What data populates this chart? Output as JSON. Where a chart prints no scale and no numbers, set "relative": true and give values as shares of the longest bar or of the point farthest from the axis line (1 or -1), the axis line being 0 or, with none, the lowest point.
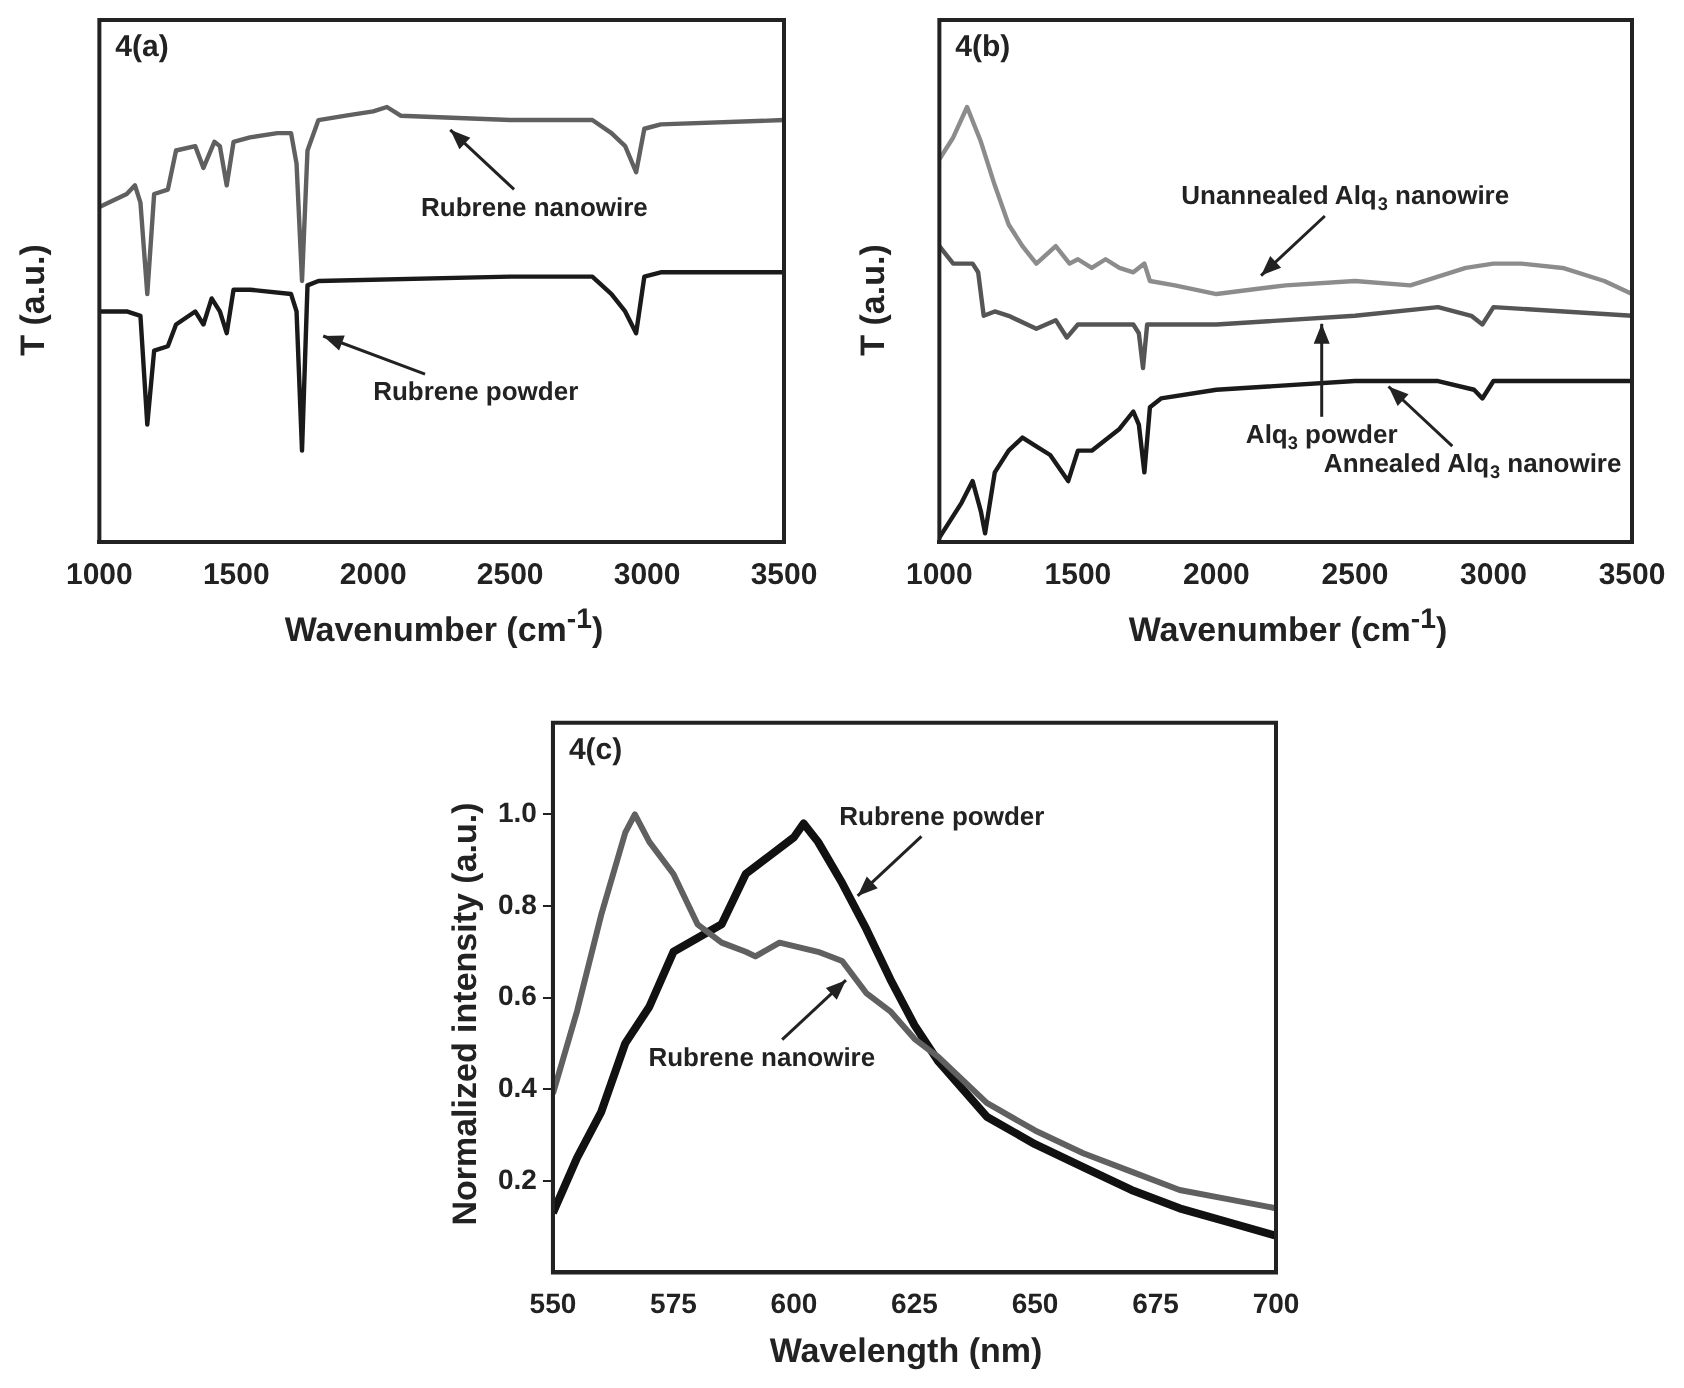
{
  "chart_data": [
    {
      "type": "line",
      "relative": true,
      "xlabel": "Wavenumber (cm$^{-1}$)",
      "ylabel": "T (a.u.)",
      "xlim": [
        1000,
        3500
      ],
      "xticks": [
        1000,
        1500,
        2000,
        2500,
        3000,
        3500
      ],
      "series": [
        {
          "color": "#606060",
          "x": [
            1000,
            1100,
            1130,
            1150,
            1175,
            1200,
            1250,
            1280,
            1350,
            1380,
            1420,
            1440,
            1465,
            1490,
            1550,
            1650,
            1700,
            1720,
            1740,
            1760,
            1800,
            1900,
            2000,
            2050,
            2100,
            2500,
            2800,
            2870,
            2920,
            2960,
            2990,
            3050,
            3500
          ],
          "values": [
            0.77,
            0.8,
            0.82,
            0.78,
            0.57,
            0.8,
            0.81,
            0.9,
            0.91,
            0.86,
            0.92,
            0.91,
            0.82,
            0.92,
            0.93,
            0.94,
            0.94,
            0.87,
            0.6,
            0.9,
            0.97,
            0.98,
            0.99,
            1,
            0.98,
            0.97,
            0.97,
            0.94,
            0.91,
            0.85,
            0.95,
            0.96,
            0.97
          ]
        },
        {
          "color": "#1a1a1a",
          "x": [
            1000,
            1100,
            1150,
            1175,
            1200,
            1250,
            1280,
            1350,
            1380,
            1410,
            1440,
            1465,
            1490,
            1550,
            1700,
            1720,
            1740,
            1760,
            1800,
            2500,
            2800,
            2870,
            2920,
            2960,
            2990,
            3050,
            3500
          ],
          "values": [
            0.53,
            0.53,
            0.52,
            0.27,
            0.44,
            0.45,
            0.5,
            0.53,
            0.5,
            0.56,
            0.53,
            0.48,
            0.58,
            0.58,
            0.57,
            0.53,
            0.21,
            0.59,
            0.6,
            0.61,
            0.61,
            0.57,
            0.53,
            0.48,
            0.61,
            0.62,
            0.62
          ]
        }
      ],
      "annotations": [
        "4(a)",
        {
          "text": "Rubrene nanowire",
          "x": 2260,
          "y": 0.96
        },
        {
          "text": "Rubrene powder",
          "x": 1790,
          "y": 0.48
        }
      ]
    },
    {
      "type": "line",
      "relative": true,
      "xlabel": "Wavenumber (cm$^{-1}$)",
      "ylabel": "T (a.u.)",
      "xlim": [
        1000,
        3500
      ],
      "xticks": [
        1000,
        1500,
        2000,
        2500,
        3000,
        3500
      ],
      "series": [
        {
          "color": "#8c8c8c",
          "x": [
            1000,
            1050,
            1100,
            1150,
            1200,
            1250,
            1300,
            1350,
            1420,
            1470,
            1500,
            1550,
            1600,
            1650,
            1700,
            1740,
            1760,
            1850,
            2000,
            2250,
            2500,
            2700,
            2900,
            3000,
            3100,
            3250,
            3400,
            3500
          ],
          "values": [
            0.88,
            0.93,
            1,
            0.92,
            0.82,
            0.73,
            0.68,
            0.64,
            0.68,
            0.64,
            0.65,
            0.63,
            0.65,
            0.63,
            0.62,
            0.64,
            0.6,
            0.59,
            0.57,
            0.59,
            0.6,
            0.59,
            0.63,
            0.64,
            0.64,
            0.63,
            0.6,
            0.57
          ]
        },
        {
          "color": "#555555",
          "x": [
            1000,
            1050,
            1120,
            1140,
            1160,
            1200,
            1250,
            1350,
            1420,
            1460,
            1500,
            1600,
            1700,
            1720,
            1735,
            1750,
            2000,
            2500,
            2800,
            2920,
            2960,
            3000,
            3500
          ],
          "values": [
            0.68,
            0.64,
            0.64,
            0.62,
            0.52,
            0.53,
            0.52,
            0.49,
            0.51,
            0.47,
            0.5,
            0.5,
            0.5,
            0.48,
            0.4,
            0.5,
            0.5,
            0.52,
            0.54,
            0.52,
            0.5,
            0.54,
            0.52
          ]
        },
        {
          "color": "#1a1a1a",
          "x": [
            1000,
            1080,
            1120,
            1150,
            1165,
            1200,
            1250,
            1300,
            1350,
            1400,
            1465,
            1500,
            1550,
            1650,
            1700,
            1720,
            1740,
            1760,
            1800,
            2000,
            2500,
            2800,
            2930,
            2960,
            3000,
            3500
          ],
          "values": [
            0.01,
            0.09,
            0.14,
            0.07,
            0.02,
            0.16,
            0.21,
            0.24,
            0.22,
            0.2,
            0.14,
            0.21,
            0.21,
            0.26,
            0.3,
            0.27,
            0.16,
            0.31,
            0.33,
            0.35,
            0.37,
            0.37,
            0.35,
            0.33,
            0.37,
            0.37
          ]
        }
      ],
      "annotations": [
        "4(b)",
        {
          "text": "Unannealed Alq$_{3}$ nanowire",
          "x": 2140,
          "y": 0.6
        },
        {
          "text": "Alq$_{3}$ powder",
          "x": 2380,
          "y": 0.52
        },
        {
          "text": "Annealed Alq$_{3}$ nanowire",
          "x": 2600,
          "y": 0.37
        }
      ]
    },
    {
      "type": "line",
      "xlabel": "Wavelength (nm)",
      "ylabel": "Normalized intensity (a.u.)",
      "xlim": [
        550,
        700
      ],
      "xticks": [
        550,
        575,
        600,
        625,
        650,
        675,
        700
      ],
      "ylim": [
        0,
        1.2
      ],
      "yticks": [
        0.2,
        0.4,
        0.6,
        0.8,
        {
          "value": 1,
          "label": "1.0"
        }
      ],
      "series": [
        {
          "color": "#606060",
          "x": [
            550,
            555,
            560,
            565,
            567,
            570,
            575,
            580,
            585,
            590,
            592,
            597,
            605,
            610,
            615,
            620,
            625,
            630,
            640,
            650,
            660,
            670,
            680,
            690,
            700
          ],
          "values": [
            0.39,
            0.57,
            0.78,
            0.96,
            1.0,
            0.94,
            0.87,
            0.76,
            0.72,
            0.7,
            0.69,
            0.72,
            0.7,
            0.68,
            0.61,
            0.57,
            0.51,
            0.47,
            0.37,
            0.31,
            0.26,
            0.22,
            0.18,
            0.16,
            0.14
          ]
        },
        {
          "color": "#111111",
          "x": [
            550,
            555,
            560,
            565,
            570,
            575,
            580,
            585,
            590,
            595,
            600,
            602,
            605,
            610,
            615,
            620,
            625,
            630,
            640,
            650,
            660,
            670,
            680,
            690,
            700
          ],
          "values": [
            0.13,
            0.25,
            0.35,
            0.5,
            0.58,
            0.7,
            0.73,
            0.76,
            0.87,
            0.91,
            0.95,
            0.98,
            0.94,
            0.85,
            0.75,
            0.64,
            0.54,
            0.46,
            0.34,
            0.28,
            0.23,
            0.18,
            0.14,
            0.11,
            0.08
          ]
        }
      ],
      "annotations": [
        "4(c)",
        {
          "text": "Rubrene powder",
          "x": 612,
          "y": 0.81
        },
        {
          "text": "Rubrene nanowire",
          "x": 612,
          "y": 0.65
        }
      ]
    }
  ]
}
